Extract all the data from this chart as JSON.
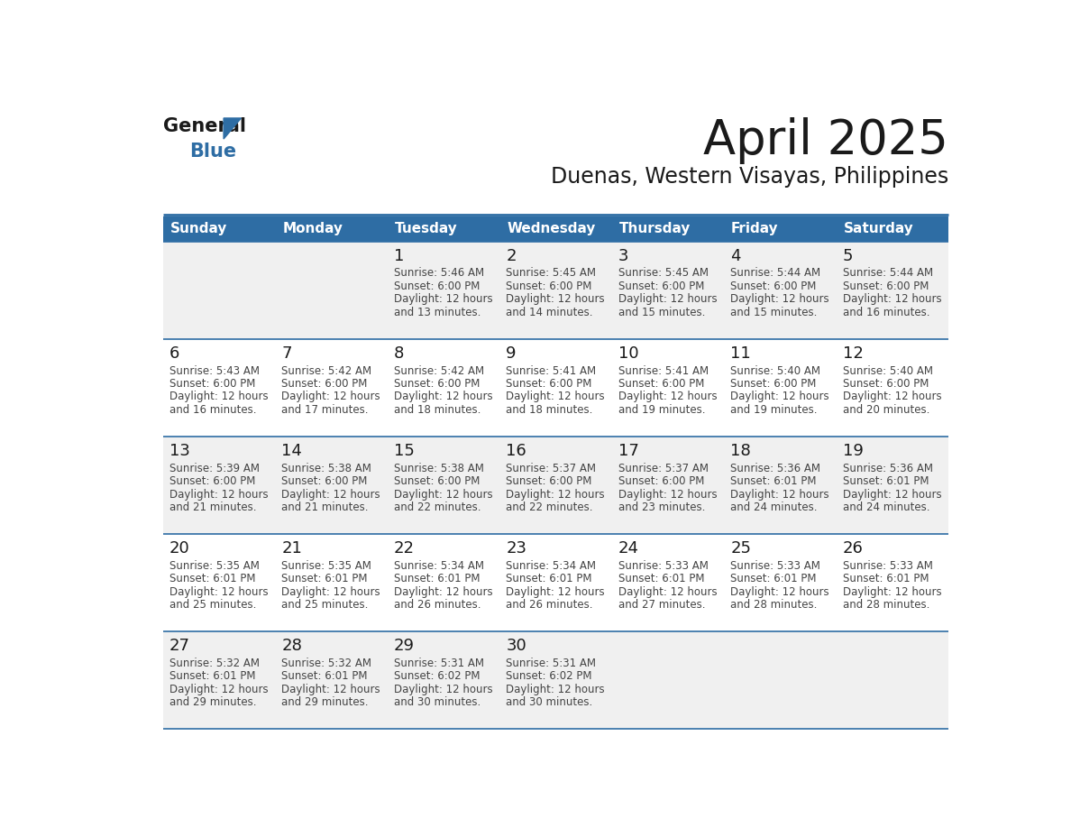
{
  "title": "April 2025",
  "subtitle": "Duenas, Western Visayas, Philippines",
  "header_bg_color": "#2E6DA4",
  "header_text_color": "#FFFFFF",
  "cell_bg_color_odd": "#F0F0F0",
  "cell_bg_color_even": "#FFFFFF",
  "grid_line_color": "#2E6DA4",
  "day_number_color": "#1A1A1A",
  "cell_text_color": "#444444",
  "days_of_week": [
    "Sunday",
    "Monday",
    "Tuesday",
    "Wednesday",
    "Thursday",
    "Friday",
    "Saturday"
  ],
  "weeks": [
    [
      {
        "day": "",
        "sunrise": "",
        "sunset": "",
        "daylight": ""
      },
      {
        "day": "",
        "sunrise": "",
        "sunset": "",
        "daylight": ""
      },
      {
        "day": "1",
        "sunrise": "5:46 AM",
        "sunset": "6:00 PM",
        "daylight": "12 hours\nand 13 minutes."
      },
      {
        "day": "2",
        "sunrise": "5:45 AM",
        "sunset": "6:00 PM",
        "daylight": "12 hours\nand 14 minutes."
      },
      {
        "day": "3",
        "sunrise": "5:45 AM",
        "sunset": "6:00 PM",
        "daylight": "12 hours\nand 15 minutes."
      },
      {
        "day": "4",
        "sunrise": "5:44 AM",
        "sunset": "6:00 PM",
        "daylight": "12 hours\nand 15 minutes."
      },
      {
        "day": "5",
        "sunrise": "5:44 AM",
        "sunset": "6:00 PM",
        "daylight": "12 hours\nand 16 minutes."
      }
    ],
    [
      {
        "day": "6",
        "sunrise": "5:43 AM",
        "sunset": "6:00 PM",
        "daylight": "12 hours\nand 16 minutes."
      },
      {
        "day": "7",
        "sunrise": "5:42 AM",
        "sunset": "6:00 PM",
        "daylight": "12 hours\nand 17 minutes."
      },
      {
        "day": "8",
        "sunrise": "5:42 AM",
        "sunset": "6:00 PM",
        "daylight": "12 hours\nand 18 minutes."
      },
      {
        "day": "9",
        "sunrise": "5:41 AM",
        "sunset": "6:00 PM",
        "daylight": "12 hours\nand 18 minutes."
      },
      {
        "day": "10",
        "sunrise": "5:41 AM",
        "sunset": "6:00 PM",
        "daylight": "12 hours\nand 19 minutes."
      },
      {
        "day": "11",
        "sunrise": "5:40 AM",
        "sunset": "6:00 PM",
        "daylight": "12 hours\nand 19 minutes."
      },
      {
        "day": "12",
        "sunrise": "5:40 AM",
        "sunset": "6:00 PM",
        "daylight": "12 hours\nand 20 minutes."
      }
    ],
    [
      {
        "day": "13",
        "sunrise": "5:39 AM",
        "sunset": "6:00 PM",
        "daylight": "12 hours\nand 21 minutes."
      },
      {
        "day": "14",
        "sunrise": "5:38 AM",
        "sunset": "6:00 PM",
        "daylight": "12 hours\nand 21 minutes."
      },
      {
        "day": "15",
        "sunrise": "5:38 AM",
        "sunset": "6:00 PM",
        "daylight": "12 hours\nand 22 minutes."
      },
      {
        "day": "16",
        "sunrise": "5:37 AM",
        "sunset": "6:00 PM",
        "daylight": "12 hours\nand 22 minutes."
      },
      {
        "day": "17",
        "sunrise": "5:37 AM",
        "sunset": "6:00 PM",
        "daylight": "12 hours\nand 23 minutes."
      },
      {
        "day": "18",
        "sunrise": "5:36 AM",
        "sunset": "6:01 PM",
        "daylight": "12 hours\nand 24 minutes."
      },
      {
        "day": "19",
        "sunrise": "5:36 AM",
        "sunset": "6:01 PM",
        "daylight": "12 hours\nand 24 minutes."
      }
    ],
    [
      {
        "day": "20",
        "sunrise": "5:35 AM",
        "sunset": "6:01 PM",
        "daylight": "12 hours\nand 25 minutes."
      },
      {
        "day": "21",
        "sunrise": "5:35 AM",
        "sunset": "6:01 PM",
        "daylight": "12 hours\nand 25 minutes."
      },
      {
        "day": "22",
        "sunrise": "5:34 AM",
        "sunset": "6:01 PM",
        "daylight": "12 hours\nand 26 minutes."
      },
      {
        "day": "23",
        "sunrise": "5:34 AM",
        "sunset": "6:01 PM",
        "daylight": "12 hours\nand 26 minutes."
      },
      {
        "day": "24",
        "sunrise": "5:33 AM",
        "sunset": "6:01 PM",
        "daylight": "12 hours\nand 27 minutes."
      },
      {
        "day": "25",
        "sunrise": "5:33 AM",
        "sunset": "6:01 PM",
        "daylight": "12 hours\nand 28 minutes."
      },
      {
        "day": "26",
        "sunrise": "5:33 AM",
        "sunset": "6:01 PM",
        "daylight": "12 hours\nand 28 minutes."
      }
    ],
    [
      {
        "day": "27",
        "sunrise": "5:32 AM",
        "sunset": "6:01 PM",
        "daylight": "12 hours\nand 29 minutes."
      },
      {
        "day": "28",
        "sunrise": "5:32 AM",
        "sunset": "6:01 PM",
        "daylight": "12 hours\nand 29 minutes."
      },
      {
        "day": "29",
        "sunrise": "5:31 AM",
        "sunset": "6:02 PM",
        "daylight": "12 hours\nand 30 minutes."
      },
      {
        "day": "30",
        "sunrise": "5:31 AM",
        "sunset": "6:02 PM",
        "daylight": "12 hours\nand 30 minutes."
      },
      {
        "day": "",
        "sunrise": "",
        "sunset": "",
        "daylight": ""
      },
      {
        "day": "",
        "sunrise": "",
        "sunset": "",
        "daylight": ""
      },
      {
        "day": "",
        "sunrise": "",
        "sunset": "",
        "daylight": ""
      }
    ]
  ],
  "logo_color_general": "#1A1A1A",
  "logo_color_blue": "#2E6DA4",
  "logo_triangle_color": "#2E6DA4",
  "title_fontsize": 38,
  "subtitle_fontsize": 17,
  "dow_fontsize": 11,
  "day_num_fontsize": 13,
  "cell_text_fontsize": 8.5
}
